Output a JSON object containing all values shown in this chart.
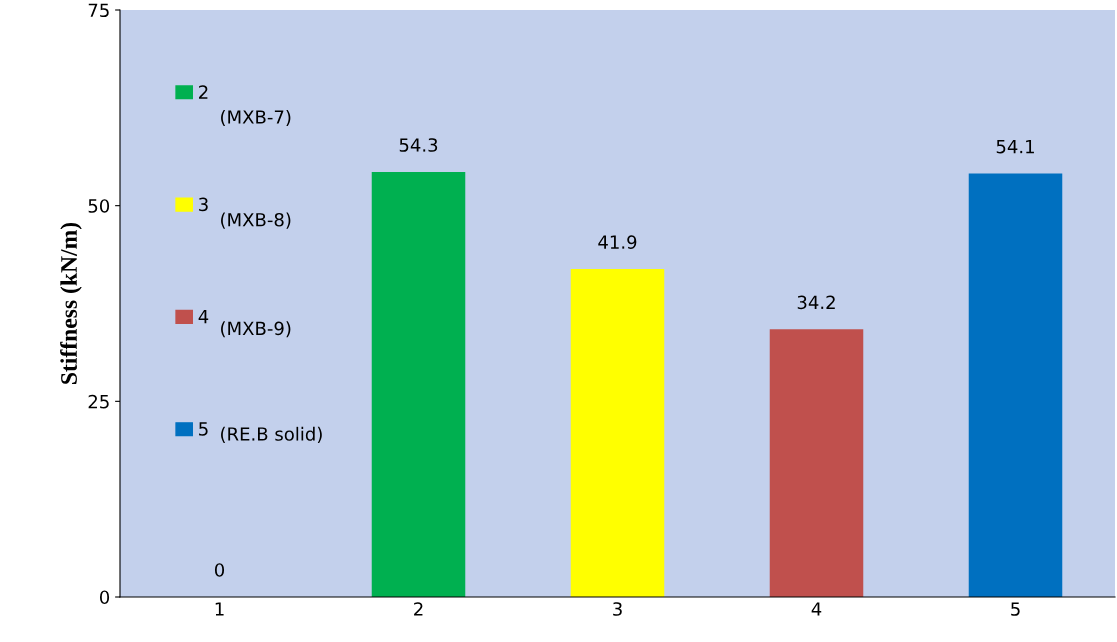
{
  "chart_data": {
    "type": "bar",
    "ylabel": "Stiffness (kN/m)",
    "categories": [
      "1",
      "2",
      "3",
      "4",
      "5"
    ],
    "series": [
      {
        "color": "#4f81bd",
        "values": [
          0,
          null,
          null,
          null,
          null
        ]
      },
      {
        "name": "2",
        "color": "#00b050",
        "values": [
          null,
          54.3,
          null,
          null,
          null
        ]
      },
      {
        "name": "3",
        "color": "#ffff00",
        "values": [
          null,
          null,
          41.9,
          null,
          null
        ]
      },
      {
        "name": "4",
        "color": "#c0504d",
        "values": [
          null,
          null,
          null,
          34.2,
          null
        ]
      },
      {
        "name": "5",
        "color": "#0070c0",
        "values": [
          null,
          null,
          null,
          null,
          54.1
        ]
      }
    ],
    "ylim": [
      0,
      75
    ],
    "yticks": [
      0,
      25,
      50,
      75
    ],
    "data_labels": true,
    "legend": "left",
    "grid": false,
    "annotations": [
      "(MXB-7)",
      "(MXB-8)",
      "(MXB-9)",
      "(RE.B solid)"
    ]
  }
}
